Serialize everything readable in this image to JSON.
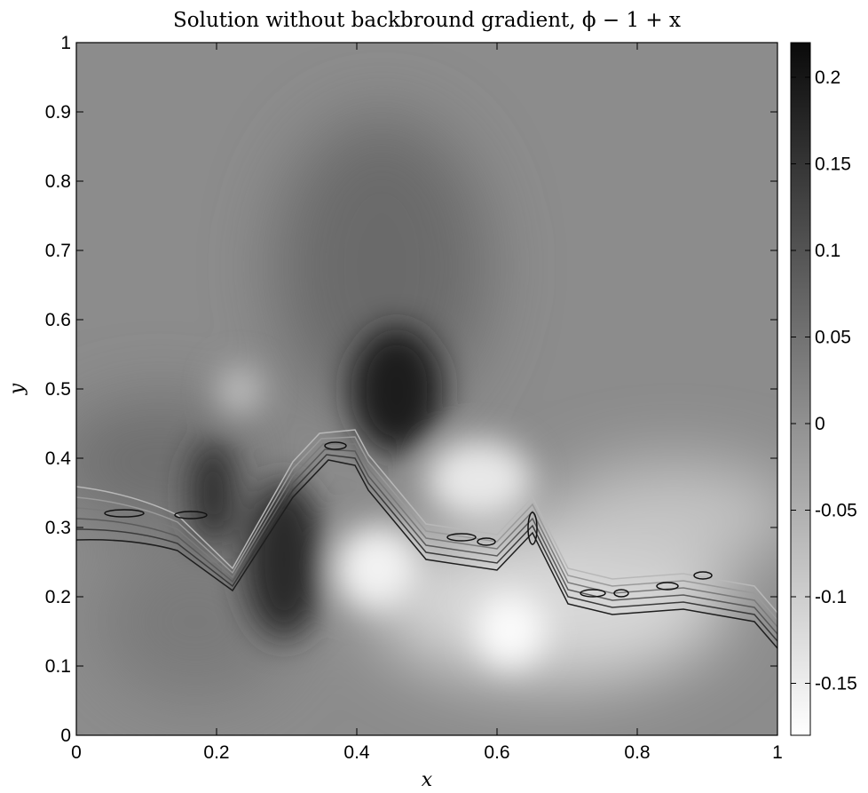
{
  "chart_data": {
    "type": "heatmap",
    "title": "Solution without backbround gradient, ϕ − 1 + x",
    "xlabel": "x",
    "ylabel": "y",
    "xlim": [
      0,
      1
    ],
    "ylim": [
      0,
      1
    ],
    "x_ticks": [
      "0",
      "0.2",
      "0.4",
      "0.6",
      "0.8",
      "1"
    ],
    "y_ticks": [
      "0",
      "0.1",
      "0.2",
      "0.3",
      "0.4",
      "0.5",
      "0.6",
      "0.7",
      "0.8",
      "0.9",
      "1"
    ],
    "colorbar": {
      "colormap": "gray (reversed: white = low, black = high)",
      "range": [
        -0.18,
        0.22
      ],
      "ticks": [
        "0.2",
        "0.15",
        "0.1",
        "0.05",
        "0",
        "-0.05",
        "-0.1",
        "-0.15"
      ]
    },
    "features": [
      {
        "kind": "maximum (dark)",
        "x": 0.45,
        "y": 0.48,
        "value": 0.22
      },
      {
        "kind": "maximum (dark)",
        "x": 0.29,
        "y": 0.24,
        "value": 0.18
      },
      {
        "kind": "minimum (light)",
        "x": 0.43,
        "y": 0.26,
        "value": -0.17
      },
      {
        "kind": "minimum (light)",
        "x": 0.6,
        "y": 0.15,
        "value": -0.18
      }
    ],
    "contour_band_centerline": [
      [
        0.0,
        0.34
      ],
      [
        0.1,
        0.32
      ],
      [
        0.2,
        0.31
      ],
      [
        0.23,
        0.27
      ],
      [
        0.3,
        0.34
      ],
      [
        0.36,
        0.41
      ],
      [
        0.42,
        0.41
      ],
      [
        0.5,
        0.32
      ],
      [
        0.6,
        0.28
      ],
      [
        0.65,
        0.3
      ],
      [
        0.7,
        0.21
      ],
      [
        0.78,
        0.21
      ],
      [
        0.88,
        0.23
      ],
      [
        1.0,
        0.14
      ]
    ]
  }
}
